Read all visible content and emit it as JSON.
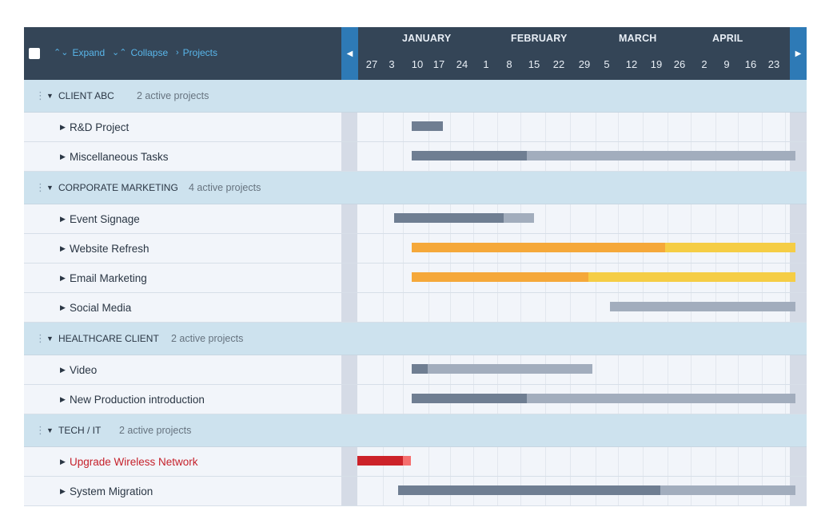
{
  "toolbar": {
    "expand_label": "Expand",
    "collapse_label": "Collapse",
    "projects_label": "Projects",
    "expand_icon": "⌃⌄",
    "collapse_icon": "⌄⌃",
    "projects_icon": "›"
  },
  "timeline": {
    "months": [
      "JANUARY",
      "FEBRUARY",
      "MARCH",
      "APRIL"
    ],
    "weeks": [
      "27",
      "3",
      "10",
      "17",
      "24",
      "1",
      "8",
      "15",
      "22",
      "29",
      "5",
      "12",
      "19",
      "26",
      "2",
      "9",
      "16",
      "23"
    ]
  },
  "colors": {
    "header_bg": "#344557",
    "nav_button": "#2e7ab6",
    "link": "#59b6ea",
    "group_row": "#cde2ee",
    "bar_dark": "#6f7e92",
    "bar_light": "#a2adbd",
    "bar_orange": "#f5a83a",
    "bar_yellow": "#f5cd45",
    "bar_red": "#cc2229",
    "bar_red_light": "#f56f6f"
  },
  "groups": [
    {
      "name": "CLIENT ABC",
      "count": "2 active projects",
      "tasks": [
        {
          "name": "R&D Project",
          "progress": 1.0
        },
        {
          "name": "Miscellaneous Tasks",
          "progress": 0.3
        }
      ]
    },
    {
      "name": "CORPORATE MARKETING",
      "count": "4 active projects",
      "tasks": [
        {
          "name": "Event Signage",
          "progress": 0.78
        },
        {
          "name": "Website Refresh",
          "progress": 0.66
        },
        {
          "name": "Email Marketing",
          "progress": 0.46
        },
        {
          "name": "Social Media",
          "progress": 0.0
        }
      ]
    },
    {
      "name": "HEALTHCARE CLIENT",
      "count": "2 active projects",
      "tasks": [
        {
          "name": "Video",
          "progress": 0.09
        },
        {
          "name": "New Production introduction",
          "progress": 0.3
        }
      ]
    },
    {
      "name": "TECH / IT",
      "count": "2 active projects",
      "tasks": [
        {
          "name": "Upgrade Wireless Network",
          "progress": 0.85,
          "alert": true
        },
        {
          "name": "System Migration",
          "progress": 0.66
        }
      ]
    }
  ]
}
